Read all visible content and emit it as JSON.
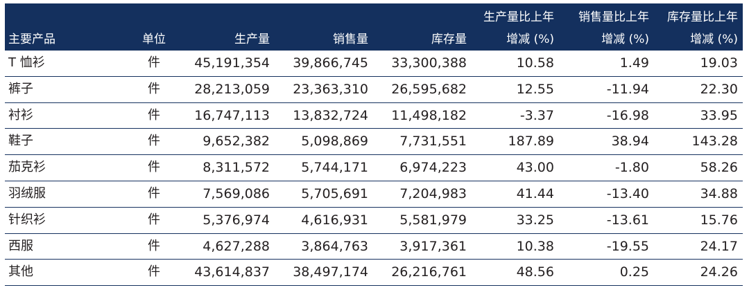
{
  "table": {
    "headers": {
      "product": "主要产品",
      "unit": "单位",
      "production": "生产量",
      "sales": "销售量",
      "inventory": "库存量",
      "production_change_l1": "生产量比上年",
      "production_change_l2": "增减 (%)",
      "sales_change_l1": "销售量比上年",
      "sales_change_l2": "增减 (%)",
      "inventory_change_l1": "库存量比上年",
      "inventory_change_l2": "增减 (%)"
    },
    "rows": [
      {
        "product": "T 恤衫",
        "unit": "件",
        "production": "45,191,354",
        "sales": "39,866,745",
        "inventory": "33,300,388",
        "production_change": "10.58",
        "sales_change": "1.49",
        "inventory_change": "19.03"
      },
      {
        "product": "裤子",
        "unit": "件",
        "production": "28,213,059",
        "sales": "23,363,310",
        "inventory": "26,595,682",
        "production_change": "12.55",
        "sales_change": "-11.94",
        "inventory_change": "22.30"
      },
      {
        "product": "衬衫",
        "unit": "件",
        "production": "16,747,113",
        "sales": "13,832,724",
        "inventory": "11,498,182",
        "production_change": "-3.37",
        "sales_change": "-16.98",
        "inventory_change": "33.95"
      },
      {
        "product": "鞋子",
        "unit": "件",
        "production": "9,652,382",
        "sales": "5,098,869",
        "inventory": "7,731,551",
        "production_change": "187.89",
        "sales_change": "38.94",
        "inventory_change": "143.28"
      },
      {
        "product": "茄克衫",
        "unit": "件",
        "production": "8,311,572",
        "sales": "5,744,171",
        "inventory": "6,974,223",
        "production_change": "43.00",
        "sales_change": "-1.80",
        "inventory_change": "58.26"
      },
      {
        "product": "羽绒服",
        "unit": "件",
        "production": "7,569,086",
        "sales": "5,705,691",
        "inventory": "7,204,983",
        "production_change": "41.44",
        "sales_change": "-13.40",
        "inventory_change": "34.88"
      },
      {
        "product": "针织衫",
        "unit": "件",
        "production": "5,376,974",
        "sales": "4,616,931",
        "inventory": "5,581,979",
        "production_change": "33.25",
        "sales_change": "-13.61",
        "inventory_change": "15.76"
      },
      {
        "product": "西服",
        "unit": "件",
        "production": "4,627,288",
        "sales": "3,864,763",
        "inventory": "3,917,361",
        "production_change": "10.38",
        "sales_change": "-19.55",
        "inventory_change": "24.17"
      },
      {
        "product": "其他",
        "unit": "件",
        "production": "43,614,837",
        "sales": "38,497,174",
        "inventory": "26,216,761",
        "production_change": "48.56",
        "sales_change": "0.25",
        "inventory_change": "24.26"
      }
    ]
  },
  "colors": {
    "header_bg": "#14305e",
    "header_text": "#ffffff",
    "body_text": "#231f20",
    "rule": "#14305e"
  }
}
